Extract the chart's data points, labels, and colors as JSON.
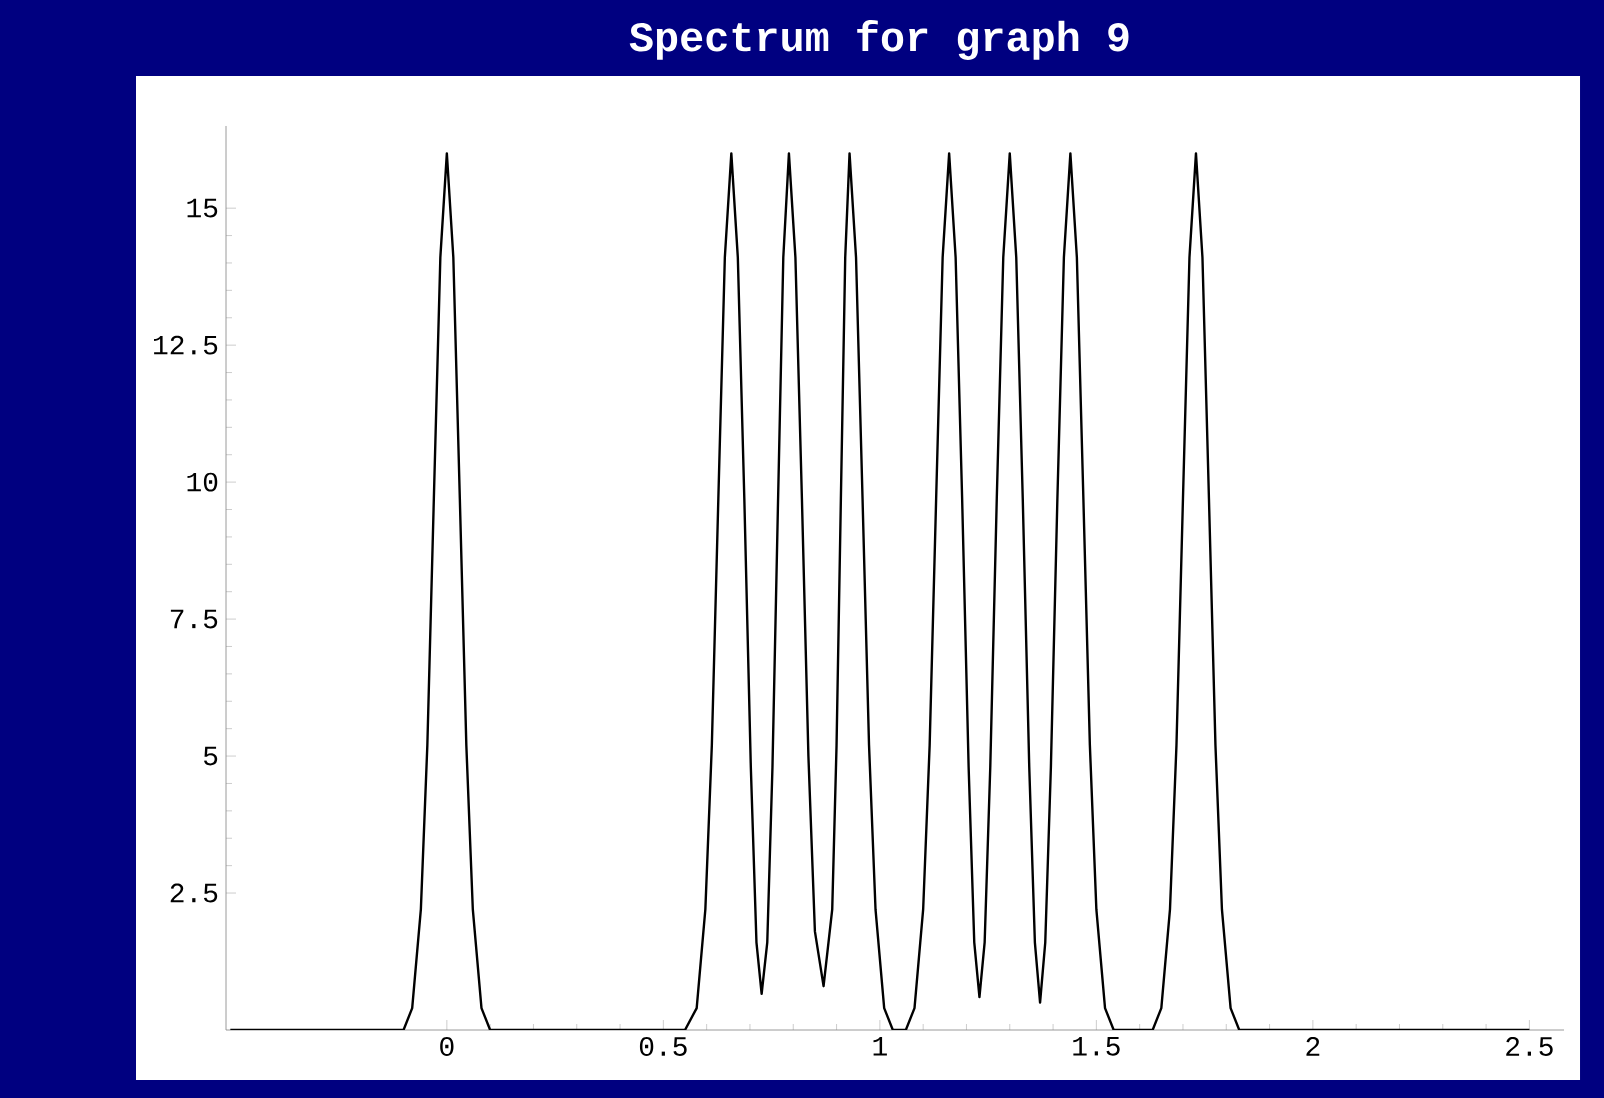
{
  "chart_data": {
    "type": "line",
    "title": "Spectrum for graph 9",
    "color": "#000000",
    "x": [
      -0.5,
      -0.1,
      -0.08,
      -0.06,
      -0.045,
      -0.03,
      -0.015,
      0,
      0.015,
      0.03,
      0.045,
      0.06,
      0.08,
      0.1,
      0.55,
      0.577,
      0.597,
      0.612,
      0.627,
      0.642,
      0.657,
      0.672,
      0.687,
      0.702,
      0.715,
      0.727,
      0.74,
      0.752,
      0.765,
      0.777,
      0.79,
      0.805,
      0.82,
      0.835,
      0.85,
      0.87,
      0.89,
      0.9,
      0.91,
      0.92,
      0.93,
      0.945,
      0.96,
      0.975,
      0.99,
      1.01,
      1.03,
      1.06,
      1.08,
      1.1,
      1.115,
      1.13,
      1.145,
      1.16,
      1.175,
      1.19,
      1.205,
      1.218,
      1.23,
      1.242,
      1.255,
      1.27,
      1.285,
      1.3,
      1.315,
      1.33,
      1.345,
      1.358,
      1.37,
      1.382,
      1.395,
      1.41,
      1.425,
      1.44,
      1.455,
      1.47,
      1.485,
      1.5,
      1.52,
      1.54,
      1.63,
      1.65,
      1.67,
      1.685,
      1.7,
      1.715,
      1.73,
      1.745,
      1.76,
      1.775,
      1.79,
      1.81,
      1.83,
      2.5
    ],
    "values": [
      0,
      0,
      0.4,
      2.2,
      5.2,
      9.7,
      14.1,
      16,
      14.1,
      9.7,
      5.2,
      2.2,
      0.4,
      0,
      0,
      0.4,
      2.2,
      5.2,
      9.7,
      14.1,
      16,
      14.1,
      9.7,
      4.8,
      1.6,
      0.66,
      1.6,
      4.8,
      9.7,
      14.1,
      16,
      14.1,
      9.7,
      5,
      1.8,
      0.8,
      2.2,
      5.2,
      9.7,
      14.1,
      16,
      14.1,
      9.7,
      5.2,
      2.2,
      0.4,
      0,
      0,
      0.4,
      2.2,
      5.2,
      9.7,
      14.1,
      16,
      14.1,
      9.7,
      4.8,
      1.6,
      0.6,
      1.6,
      4.8,
      9.7,
      14.1,
      16,
      14.1,
      9.7,
      4.8,
      1.6,
      0.5,
      1.6,
      4.8,
      9.7,
      14.1,
      16,
      14.1,
      9.7,
      5.2,
      2.2,
      0.4,
      0,
      0,
      0.4,
      2.2,
      5.2,
      9.7,
      14.1,
      16,
      14.1,
      9.7,
      5.2,
      2.2,
      0.4,
      0,
      0
    ],
    "xlim": [
      -0.51,
      2.58
    ],
    "ylim": [
      0,
      16.5
    ],
    "xticks": [
      0,
      0.5,
      1,
      1.5,
      2,
      2.5
    ],
    "yticks": [
      2.5,
      5,
      7.5,
      10,
      12.5,
      15
    ]
  }
}
